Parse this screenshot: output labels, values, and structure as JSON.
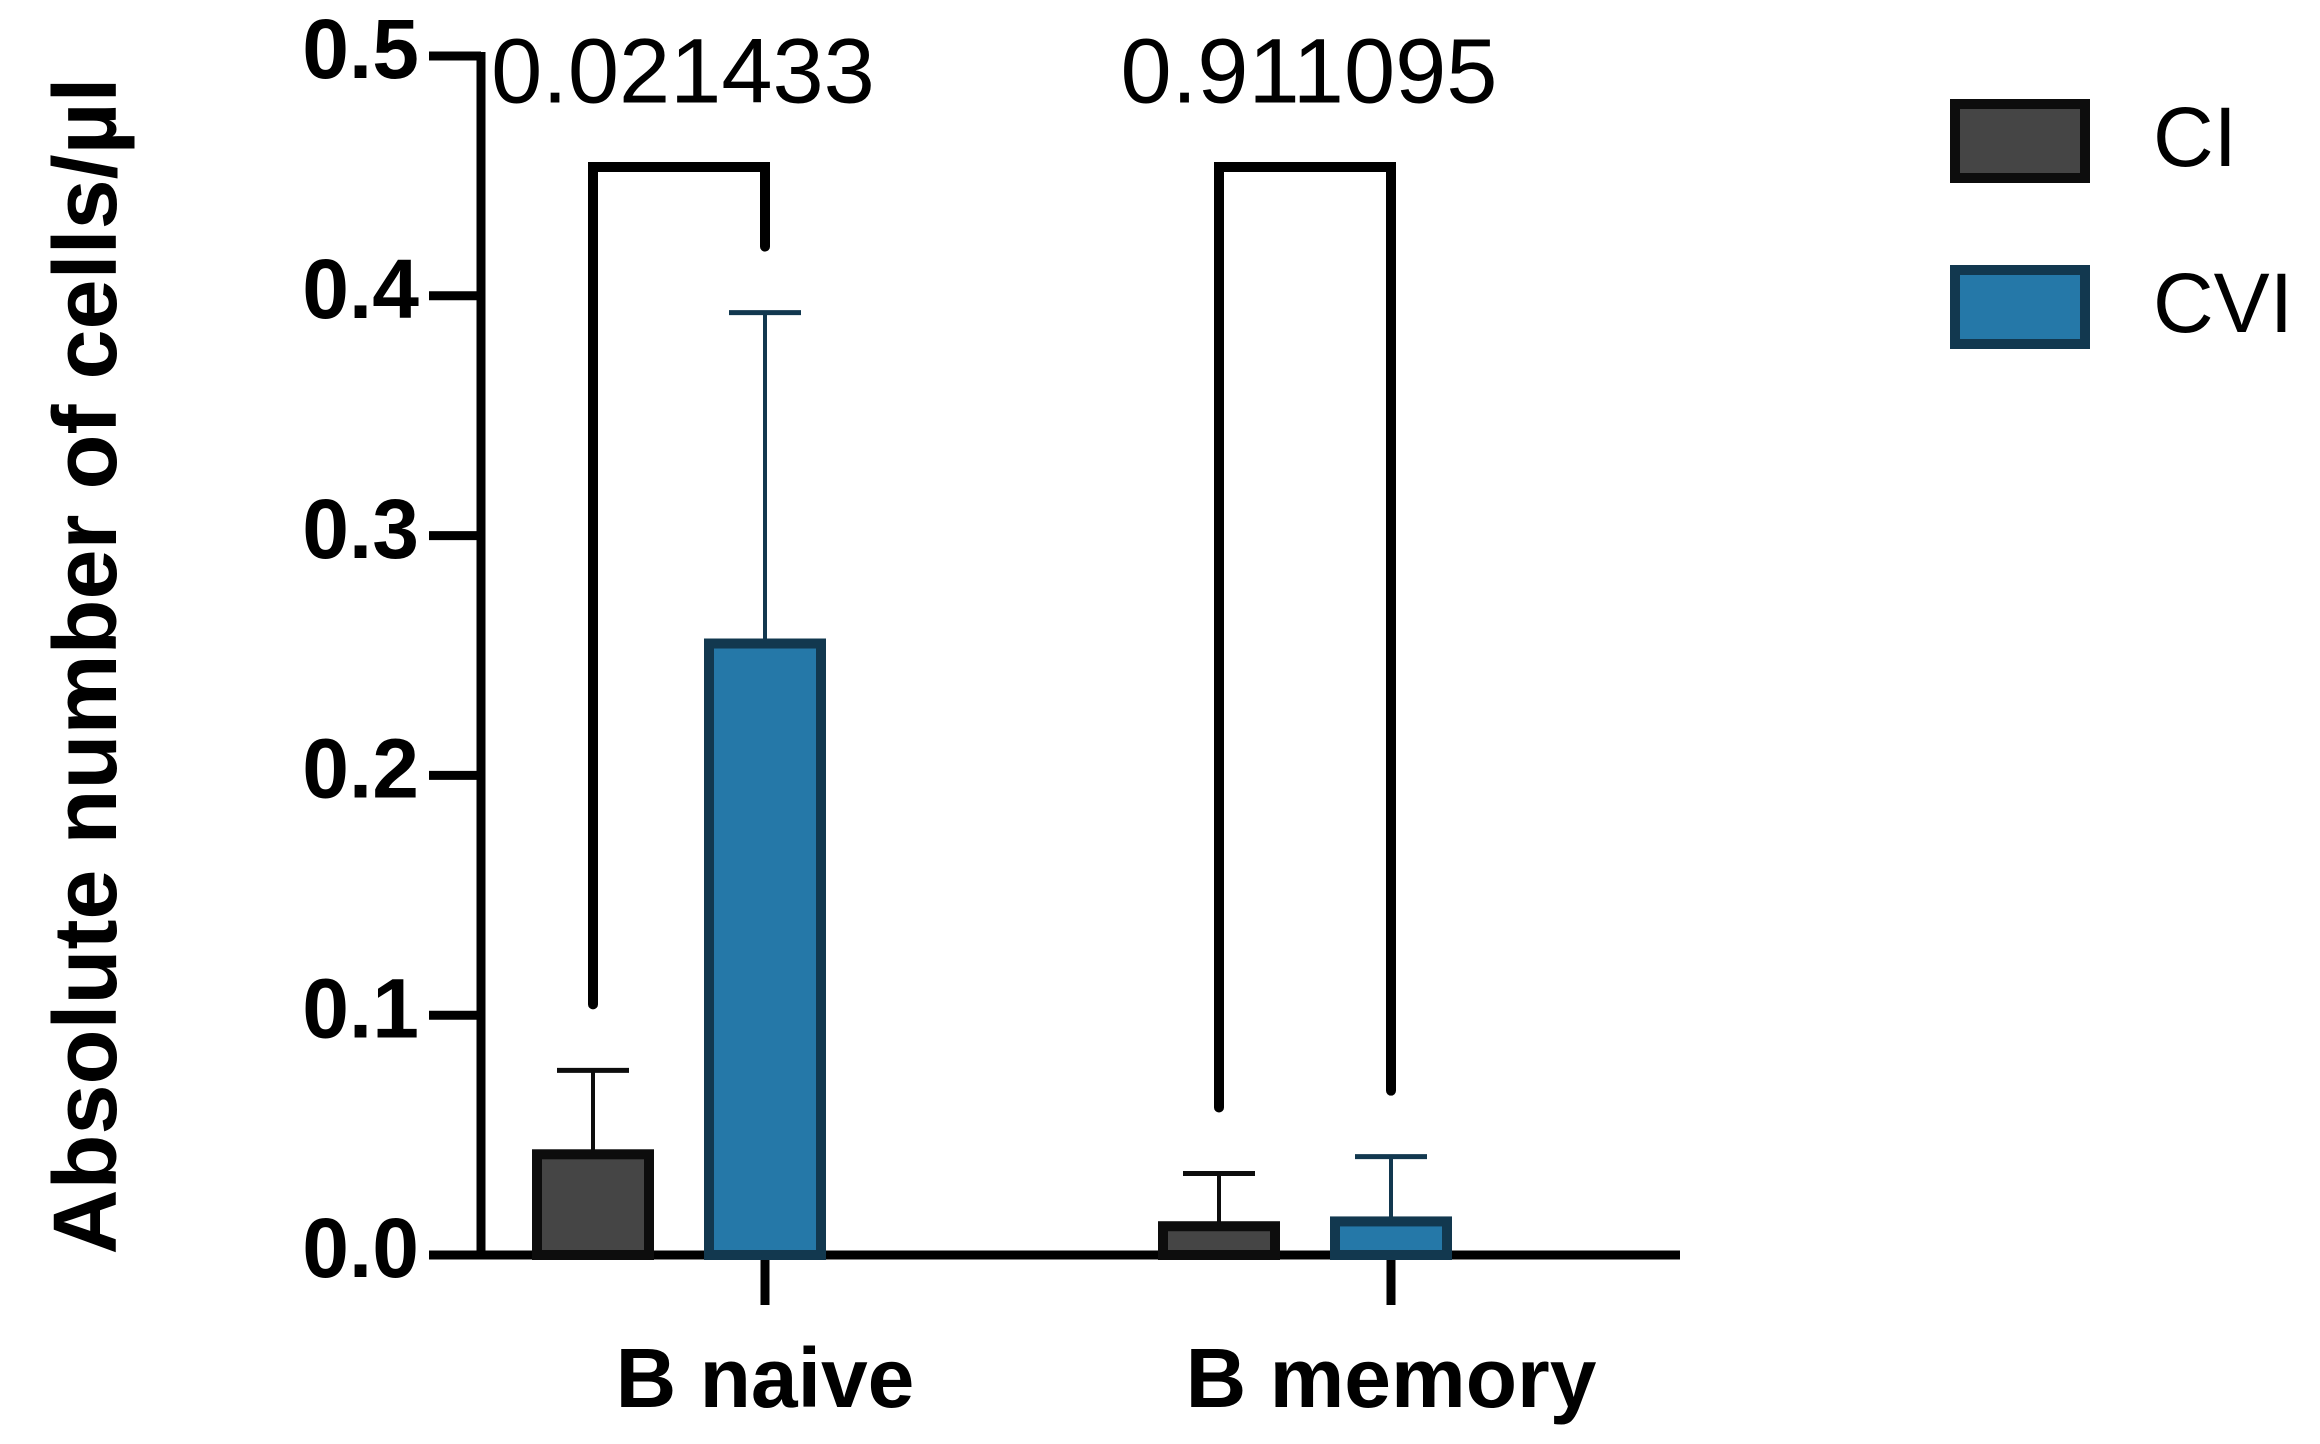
{
  "chart_data": {
    "type": "bar",
    "y_label": "Absolute number of cells/µl",
    "categories": [
      "B naive",
      "B memory"
    ],
    "series": [
      {
        "name": "CI",
        "color": "#454545",
        "edge_color": "#0d0d0d",
        "values": [
          0.042,
          0.012
        ],
        "errors": [
          0.035,
          0.022
        ]
      },
      {
        "name": "CVI",
        "color": "#2578a8",
        "edge_color": "#12384f",
        "values": [
          0.255,
          0.014
        ],
        "errors": [
          0.138,
          0.027
        ]
      }
    ],
    "ylim": [
      0,
      0.5
    ],
    "yticks": [
      {
        "value": 0,
        "label": "0.0"
      },
      0.1,
      0.2,
      0.3,
      0.4,
      0.5
    ],
    "annotations": [
      "0.021433",
      "0.911095"
    ],
    "legend": "right"
  }
}
